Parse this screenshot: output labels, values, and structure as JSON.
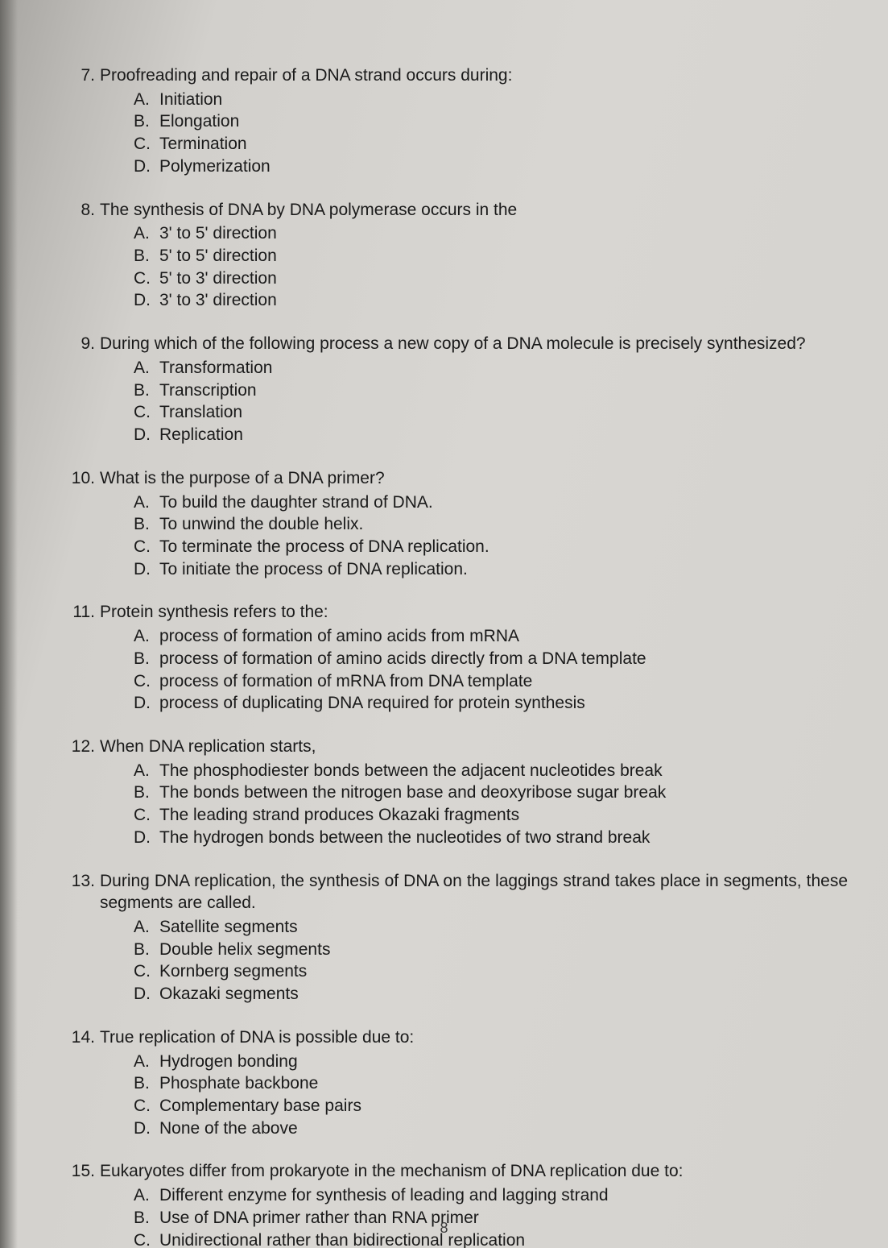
{
  "page_number": "8",
  "questions": [
    {
      "number": "7.",
      "stem": "Proofreading and repair of a DNA strand occurs during:",
      "justify": false,
      "options": [
        {
          "letter": "A.",
          "text": "Initiation"
        },
        {
          "letter": "B.",
          "text": "Elongation"
        },
        {
          "letter": "C.",
          "text": "Termination"
        },
        {
          "letter": "D.",
          "text": "Polymerization"
        }
      ]
    },
    {
      "number": "8.",
      "stem": "The synthesis of DNA by DNA polymerase occurs in the",
      "justify": false,
      "options": [
        {
          "letter": "A.",
          "text": "3' to 5' direction"
        },
        {
          "letter": "B.",
          "text": "5' to 5' direction"
        },
        {
          "letter": "C.",
          "text": "5' to 3' direction"
        },
        {
          "letter": "D.",
          "text": "3' to 3' direction"
        }
      ]
    },
    {
      "number": "9.",
      "stem": "During which of the following process a new copy of a DNA molecule is precisely synthesized?",
      "justify": true,
      "options": [
        {
          "letter": "A.",
          "text": "Transformation"
        },
        {
          "letter": "B.",
          "text": "Transcription"
        },
        {
          "letter": "C.",
          "text": "Translation"
        },
        {
          "letter": "D.",
          "text": "Replication"
        }
      ]
    },
    {
      "number": "10.",
      "stem": "What is the purpose of a DNA primer?",
      "justify": false,
      "options": [
        {
          "letter": "A.",
          "text": "To build the daughter strand of DNA."
        },
        {
          "letter": "B.",
          "text": "To unwind the double helix."
        },
        {
          "letter": "C.",
          "text": "To terminate the process of DNA replication."
        },
        {
          "letter": "D.",
          "text": "To initiate the process of DNA replication."
        }
      ]
    },
    {
      "number": "11.",
      "stem": "Protein synthesis refers to the:",
      "justify": false,
      "options": [
        {
          "letter": "A.",
          "text": "process of formation of amino acids from mRNA"
        },
        {
          "letter": "B.",
          "text": "process of formation of amino acids directly from a DNA template"
        },
        {
          "letter": "C.",
          "text": "process of formation of mRNA from DNA template"
        },
        {
          "letter": "D.",
          "text": "process of duplicating DNA required for protein synthesis"
        }
      ]
    },
    {
      "number": "12.",
      "stem": "When DNA replication starts,",
      "justify": false,
      "options": [
        {
          "letter": "A.",
          "text": "The phosphodiester bonds between the adjacent nucleotides break"
        },
        {
          "letter": "B.",
          "text": "The bonds between the nitrogen base and deoxyribose sugar break"
        },
        {
          "letter": "C.",
          "text": "The leading strand produces Okazaki fragments"
        },
        {
          "letter": "D.",
          "text": "The hydrogen bonds between the nucleotides of two strand break"
        }
      ]
    },
    {
      "number": "13.",
      "stem": "During DNA replication, the synthesis of DNA on the laggings strand takes place in segments, these segments are called.",
      "justify": true,
      "options": [
        {
          "letter": "A.",
          "text": "Satellite segments"
        },
        {
          "letter": "B.",
          "text": "Double helix segments"
        },
        {
          "letter": "C.",
          "text": "Kornberg segments"
        },
        {
          "letter": "D.",
          "text": "Okazaki segments"
        }
      ]
    },
    {
      "number": "14.",
      "stem": "True replication of DNA is possible due to:",
      "justify": false,
      "options": [
        {
          "letter": "A.",
          "text": "Hydrogen bonding"
        },
        {
          "letter": "B.",
          "text": "Phosphate backbone"
        },
        {
          "letter": "C.",
          "text": "Complementary base pairs"
        },
        {
          "letter": "D.",
          "text": "None of the above"
        }
      ]
    },
    {
      "number": "15.",
      "stem": "Eukaryotes differ from prokaryote in the mechanism of DNA replication due to:",
      "justify": false,
      "options": [
        {
          "letter": "A.",
          "text": "Different enzyme for synthesis of leading and lagging strand"
        },
        {
          "letter": "B.",
          "text": "Use of DNA primer rather than RNA primer"
        },
        {
          "letter": "C.",
          "text": "Unidirectional rather than bidirectional replication"
        }
      ]
    }
  ]
}
